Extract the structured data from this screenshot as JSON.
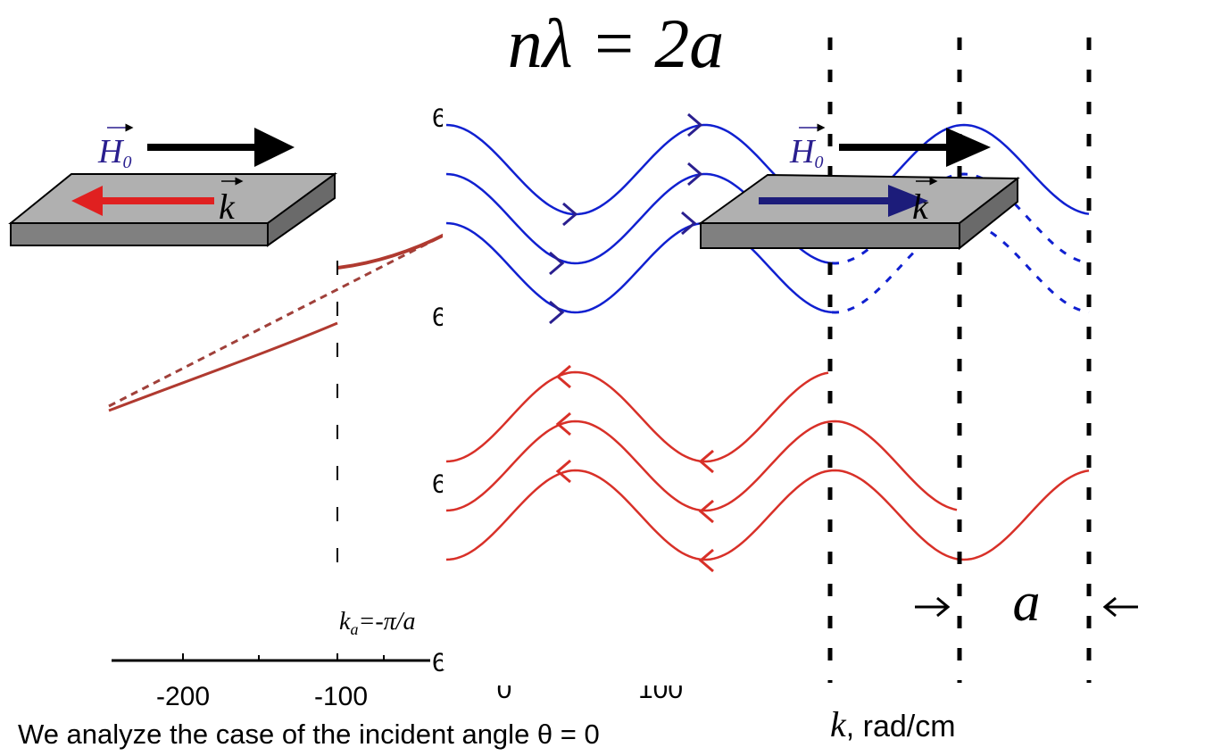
{
  "formula": "nλ = 2a",
  "left_panel": {
    "field_symbol": "H",
    "field_subscript": "0",
    "wave_symbol": "k"
  },
  "right_panel": {
    "field_symbol": "H",
    "field_subscript": "0",
    "wave_symbol": "k"
  },
  "plot": {
    "boundary_symbol": "k",
    "boundary_subscript": "a",
    "boundary_value": "=-π/a",
    "x_tick_labels": [
      "-200",
      "-100",
      "0",
      "100"
    ],
    "y_tick_fragments": [
      "6",
      "6",
      "6",
      "6"
    ],
    "x_axis_symbol": "k",
    "x_axis_unit": ", rad/cm"
  },
  "period_label": "a",
  "caption": "We analyze the case of the incident angle θ = 0"
}
